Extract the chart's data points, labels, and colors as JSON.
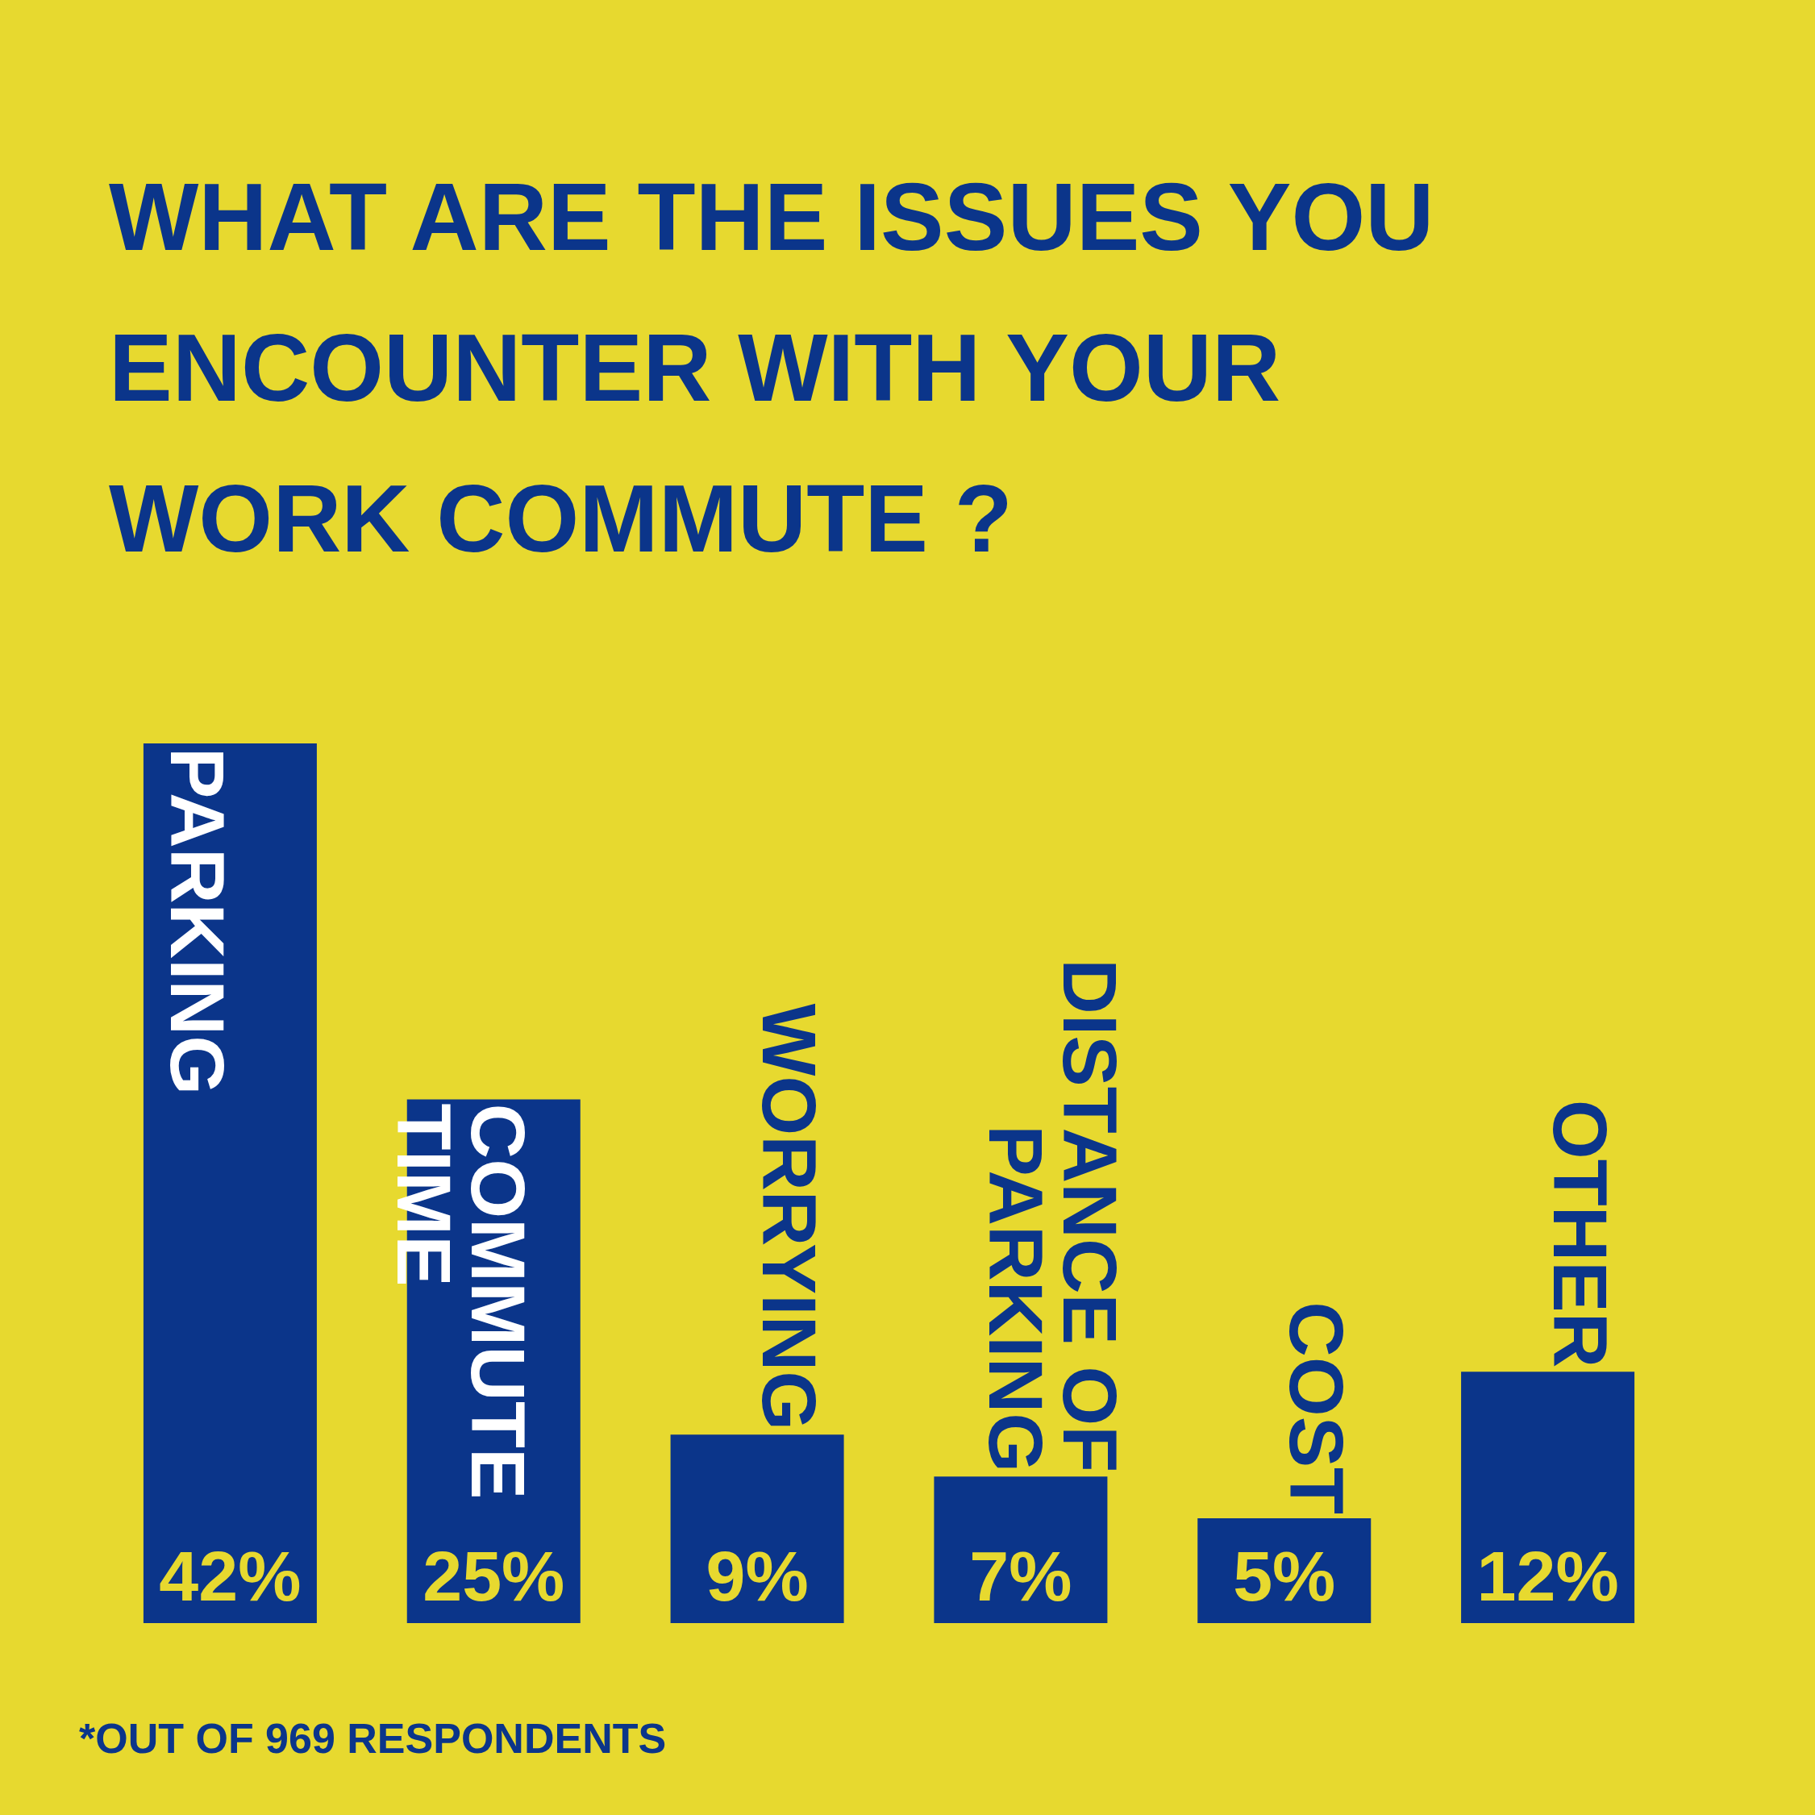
{
  "chart_data": {
    "type": "bar",
    "title": "WHAT ARE THE ISSUES YOU ENCOUNTER WITH YOUR WORK COMMUTE ?",
    "categories": [
      "PARKING",
      "COMMUTE TIME",
      "WORRYING",
      "DISTANCE OF PARKING",
      "COST",
      "OTHER"
    ],
    "values": [
      42,
      25,
      9,
      7,
      5,
      12
    ],
    "value_labels": [
      "42%",
      "25%",
      "9%",
      "7%",
      "5%",
      "12%"
    ],
    "color": "#0b358a",
    "annotations": [
      "*OUT OF 969 RESPONDENTS"
    ]
  }
}
